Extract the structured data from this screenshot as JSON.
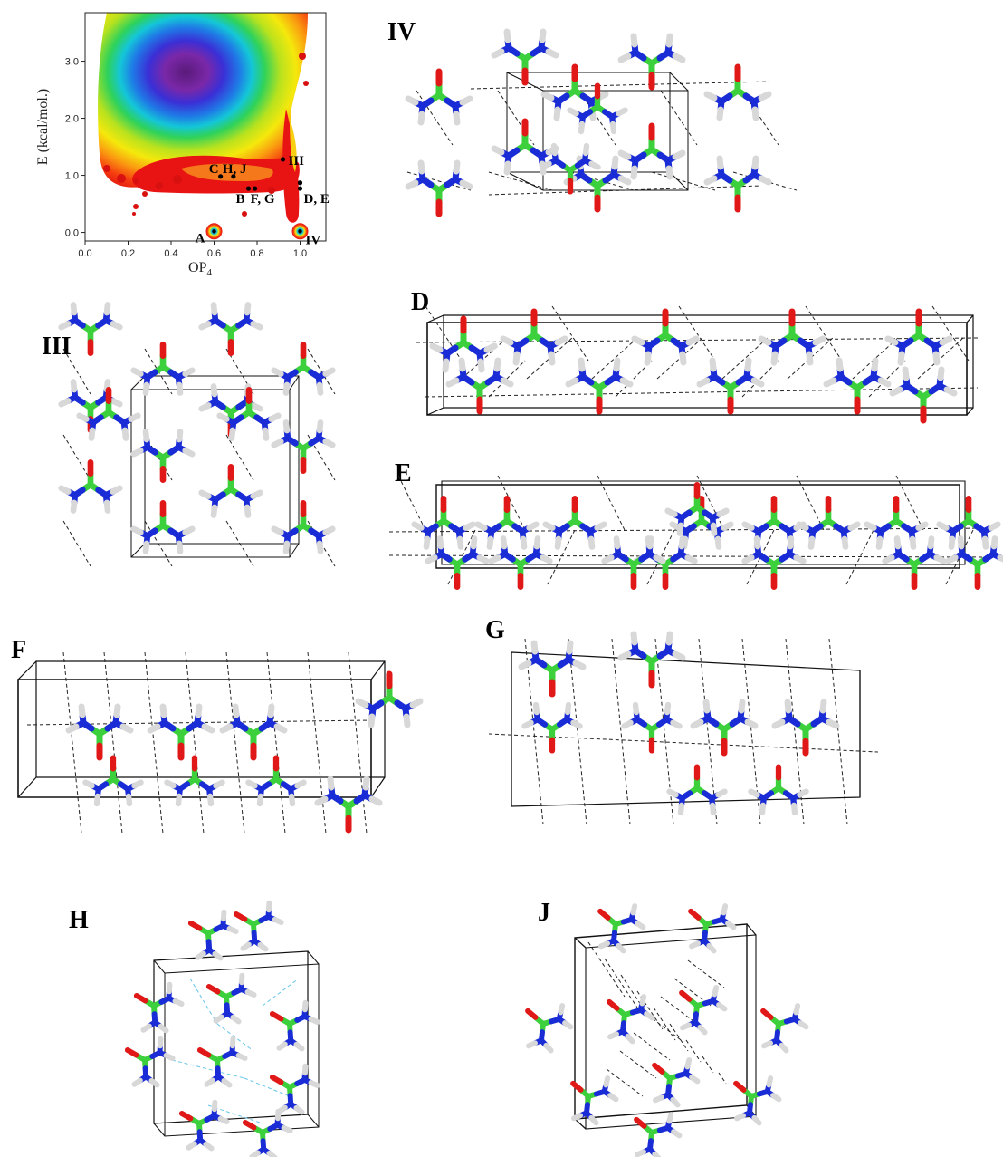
{
  "energy_map": {
    "x_axis_label": "OP",
    "x_axis_sub": "4",
    "y_axis_label": "E (kcal/mol.)",
    "x_ticks": [
      "0.0",
      "0.2",
      "0.4",
      "0.6",
      "0.8",
      "1.0"
    ],
    "y_ticks": [
      "0.0",
      "1.0",
      "2.0",
      "3.0"
    ],
    "xlim": [
      0.0,
      1.12
    ],
    "ylim": [
      -0.15,
      3.85
    ],
    "points": [
      {
        "label": "A",
        "x": 0.6,
        "y": 0.02
      },
      {
        "label": "IV",
        "x": 1.0,
        "y": 0.02
      },
      {
        "label": "III",
        "x": 0.92,
        "y": 1.28
      },
      {
        "label": "C",
        "x": 0.63,
        "y": 0.98
      },
      {
        "label": "H, J",
        "x": 0.69,
        "y": 0.98
      },
      {
        "label": "B",
        "x": 0.76,
        "y": 0.77
      },
      {
        "label": "F, G",
        "x": 0.79,
        "y": 0.77
      },
      {
        "label": "D, E",
        "x": 1.0,
        "y": 0.77
      },
      {
        "label": "",
        "x": 1.0,
        "y": 0.87
      }
    ]
  },
  "structures": {
    "iv": {
      "label": "IV"
    },
    "iii": {
      "label": "III"
    },
    "d": {
      "label": "D"
    },
    "e": {
      "label": "E"
    },
    "f": {
      "label": "F"
    },
    "g": {
      "label": "G"
    },
    "h": {
      "label": "H"
    },
    "j": {
      "label": "J"
    }
  },
  "colors": {
    "carbon": "#3cd13c",
    "oxygen": "#e01818",
    "nitrogen": "#1a2cd6",
    "hydrogen": "#d8d8d8",
    "cell": "#111111",
    "hbond": "#222222",
    "hbond_cyan": "#66c6e8"
  }
}
